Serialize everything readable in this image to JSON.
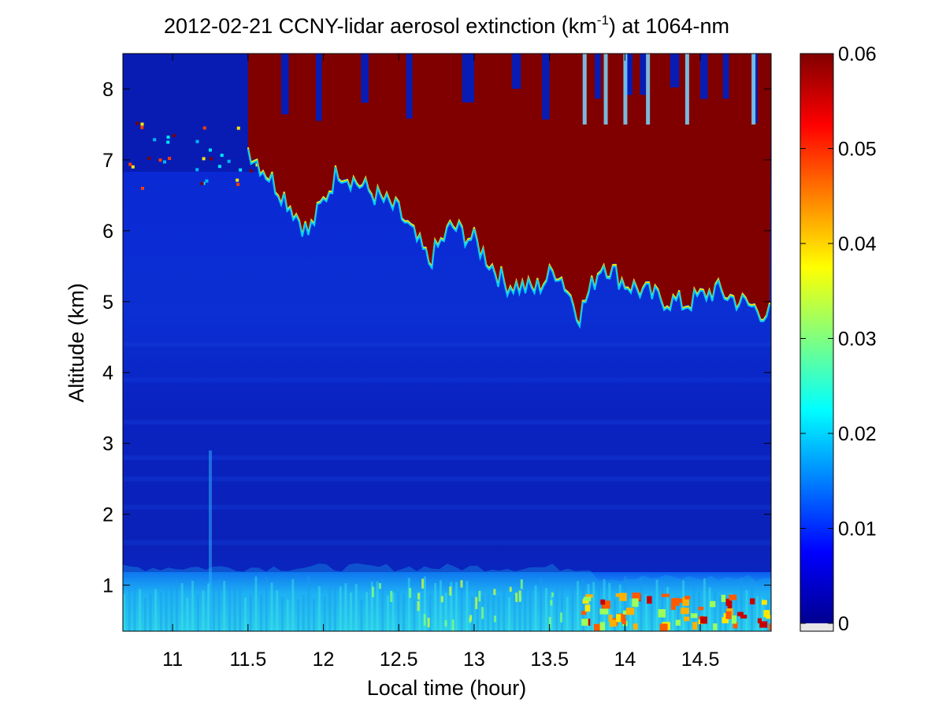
{
  "chart_data": {
    "type": "heatmap",
    "title": {
      "prefix": "2012-02-21 CCNY-lidar aerosol extinction (km",
      "superscript": "-1",
      "suffix": ") at 1064-nm"
    },
    "xlabel": "Local time (hour)",
    "ylabel": "Altitude (km)",
    "xlim": [
      10.67,
      14.97
    ],
    "ylim": [
      0.35,
      8.5
    ],
    "xticks": [
      11,
      11.5,
      12,
      12.5,
      13,
      13.5,
      14,
      14.5
    ],
    "xtick_labels": [
      "11",
      "11.5",
      "12",
      "12.5",
      "13",
      "13.5",
      "14",
      "14.5"
    ],
    "yticks": [
      1,
      2,
      3,
      4,
      5,
      6,
      7,
      8
    ],
    "ytick_labels": [
      "1",
      "2",
      "3",
      "4",
      "5",
      "6",
      "7",
      "8"
    ],
    "colormap": "jet",
    "colorbar": {
      "range": [
        0,
        0.06
      ],
      "ticks": [
        0,
        0.01,
        0.02,
        0.03,
        0.04,
        0.05,
        0.06
      ],
      "tick_labels": [
        "0",
        "0.01",
        "0.02",
        "0.03",
        "0.04",
        "0.05",
        "0.06"
      ]
    },
    "cloud_base_profile": {
      "description": "approximate base altitude (km) of the saturated cloud layer vs local time",
      "time": [
        11.5,
        11.75,
        11.9,
        12.1,
        12.3,
        12.5,
        12.7,
        12.85,
        13.0,
        13.2,
        13.4,
        13.55,
        13.7,
        13.85,
        14.0,
        14.2,
        14.4,
        14.6,
        14.8,
        14.97
      ],
      "base_km": [
        7.2,
        6.5,
        6.0,
        6.9,
        6.6,
        6.3,
        5.6,
        6.1,
        5.9,
        5.3,
        5.2,
        5.5,
        4.85,
        5.6,
        5.3,
        5.1,
        5.0,
        5.2,
        5.0,
        4.85
      ]
    },
    "features": {
      "upper_aerosol_layer_km": [
        6.6,
        7.6
      ],
      "boundary_layer_top_km": 1.25,
      "boundary_layer_high_extinction_after_hour": 13.7
    }
  }
}
